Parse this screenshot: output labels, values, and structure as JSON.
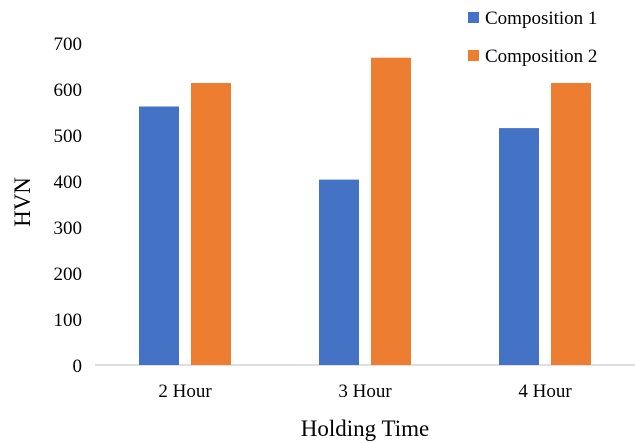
{
  "chart_data": {
    "type": "bar",
    "categories": [
      "2 Hour",
      "3 Hour",
      "4 Hour"
    ],
    "series": [
      {
        "name": "Composition 1",
        "values": [
          562,
          403,
          515
        ],
        "color": "#4472C4"
      },
      {
        "name": "Composition 2",
        "values": [
          613,
          668,
          613
        ],
        "color": "#ED7D31"
      }
    ],
    "xlabel": "Holding Time",
    "ylabel": "HVN",
    "ylim": [
      0,
      700
    ],
    "yticks": [
      0,
      100,
      200,
      300,
      400,
      500,
      600,
      700
    ],
    "grid": false,
    "legend_position": "top-right"
  }
}
